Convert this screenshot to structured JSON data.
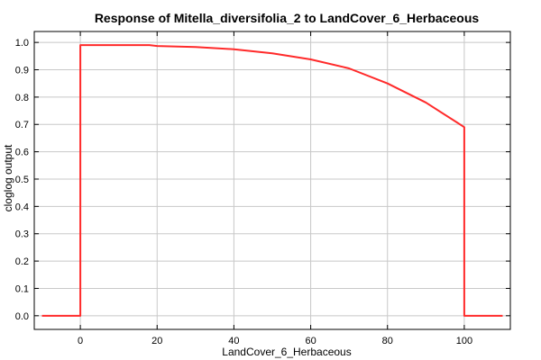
{
  "chart_data": {
    "type": "line",
    "title": "Response of Mitella_diversifolia_2 to LandCover_6_Herbaceous",
    "xlabel": "LandCover_6_Herbaceous",
    "ylabel": "cloglog output",
    "xlim": [
      -12,
      112
    ],
    "ylim": [
      -0.05,
      1.04
    ],
    "x_ticks": [
      0,
      20,
      40,
      60,
      80,
      100
    ],
    "y_ticks": [
      0.0,
      0.1,
      0.2,
      0.3,
      0.4,
      0.5,
      0.6,
      0.7,
      0.8,
      0.9,
      1.0
    ],
    "x_tick_labels": [
      "0",
      "20",
      "40",
      "60",
      "80",
      "100"
    ],
    "y_tick_labels": [
      "0.0",
      "0.1",
      "0.2",
      "0.3",
      "0.4",
      "0.5",
      "0.6",
      "0.7",
      "0.8",
      "0.9",
      "1.0"
    ],
    "grid": true,
    "series": [
      {
        "color": "#ff2a2a",
        "x": [
          -10,
          0,
          0,
          10,
          18,
          20,
          30,
          40,
          50,
          60,
          70,
          80,
          90,
          100,
          100,
          110
        ],
        "y": [
          0.0,
          0.0,
          0.99,
          0.99,
          0.99,
          0.987,
          0.983,
          0.975,
          0.96,
          0.938,
          0.905,
          0.85,
          0.78,
          0.69,
          0.0,
          0.0
        ]
      }
    ]
  }
}
